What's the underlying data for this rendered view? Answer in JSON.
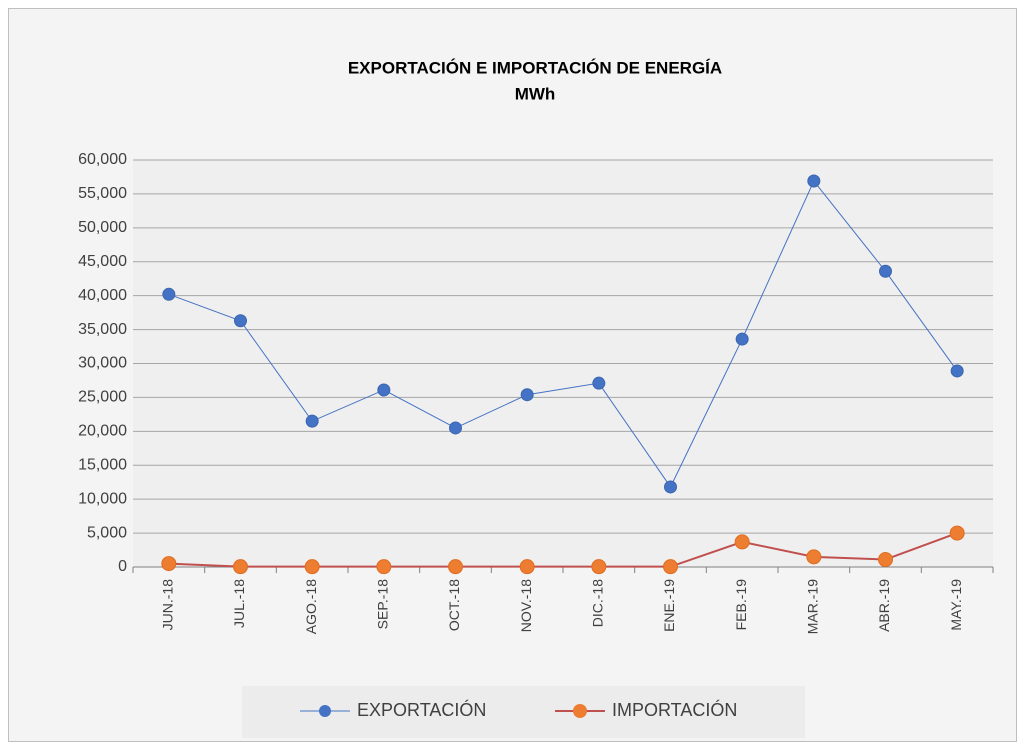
{
  "chart_data": {
    "type": "line",
    "title": "EXPORTACIÓN E IMPORTACIÓN DE ENERGÍA",
    "subtitle": "MWh",
    "categories": [
      "JUN.-18",
      "JUL.-18",
      "AGO.-18",
      "SEP.-18",
      "OCT.-18",
      "NOV.-18",
      "DIC.-18",
      "ENE.-19",
      "FEB.-19",
      "MAR.-19",
      "ABR.-19",
      "MAY.-19"
    ],
    "series": [
      {
        "name": "EXPORTACIÓN",
        "color": "#4472c4",
        "marker_color": "#4472c4",
        "values": [
          40200,
          36300,
          21500,
          26100,
          20500,
          25400,
          27100,
          11800,
          33600,
          56900,
          43600,
          28900
        ]
      },
      {
        "name": "IMPORTACIÓN",
        "color": "#c0504d",
        "marker_color": "#ed7d31",
        "values": [
          500,
          50,
          50,
          50,
          50,
          50,
          50,
          50,
          3700,
          1500,
          1100,
          5000
        ]
      }
    ],
    "ylim": [
      0,
      60000
    ],
    "yticks": [
      0,
      {
        "value": 5000,
        "label": "5,000"
      },
      {
        "value": 10000,
        "label": "10,000"
      },
      {
        "value": 15000,
        "label": "15,000"
      },
      {
        "value": 20000,
        "label": "20,000"
      },
      {
        "value": 25000,
        "label": "25,000"
      },
      {
        "value": 30000,
        "label": "30,000"
      },
      {
        "value": 35000,
        "label": "35,000"
      },
      {
        "value": 40000,
        "label": "40,000"
      },
      {
        "value": 45000,
        "label": "45,000"
      },
      {
        "value": 50000,
        "label": "50,000"
      },
      {
        "value": 55000,
        "label": "55,000"
      },
      {
        "value": 60000,
        "label": "60,000"
      }
    ],
    "grid": true,
    "legend": "bottom"
  }
}
